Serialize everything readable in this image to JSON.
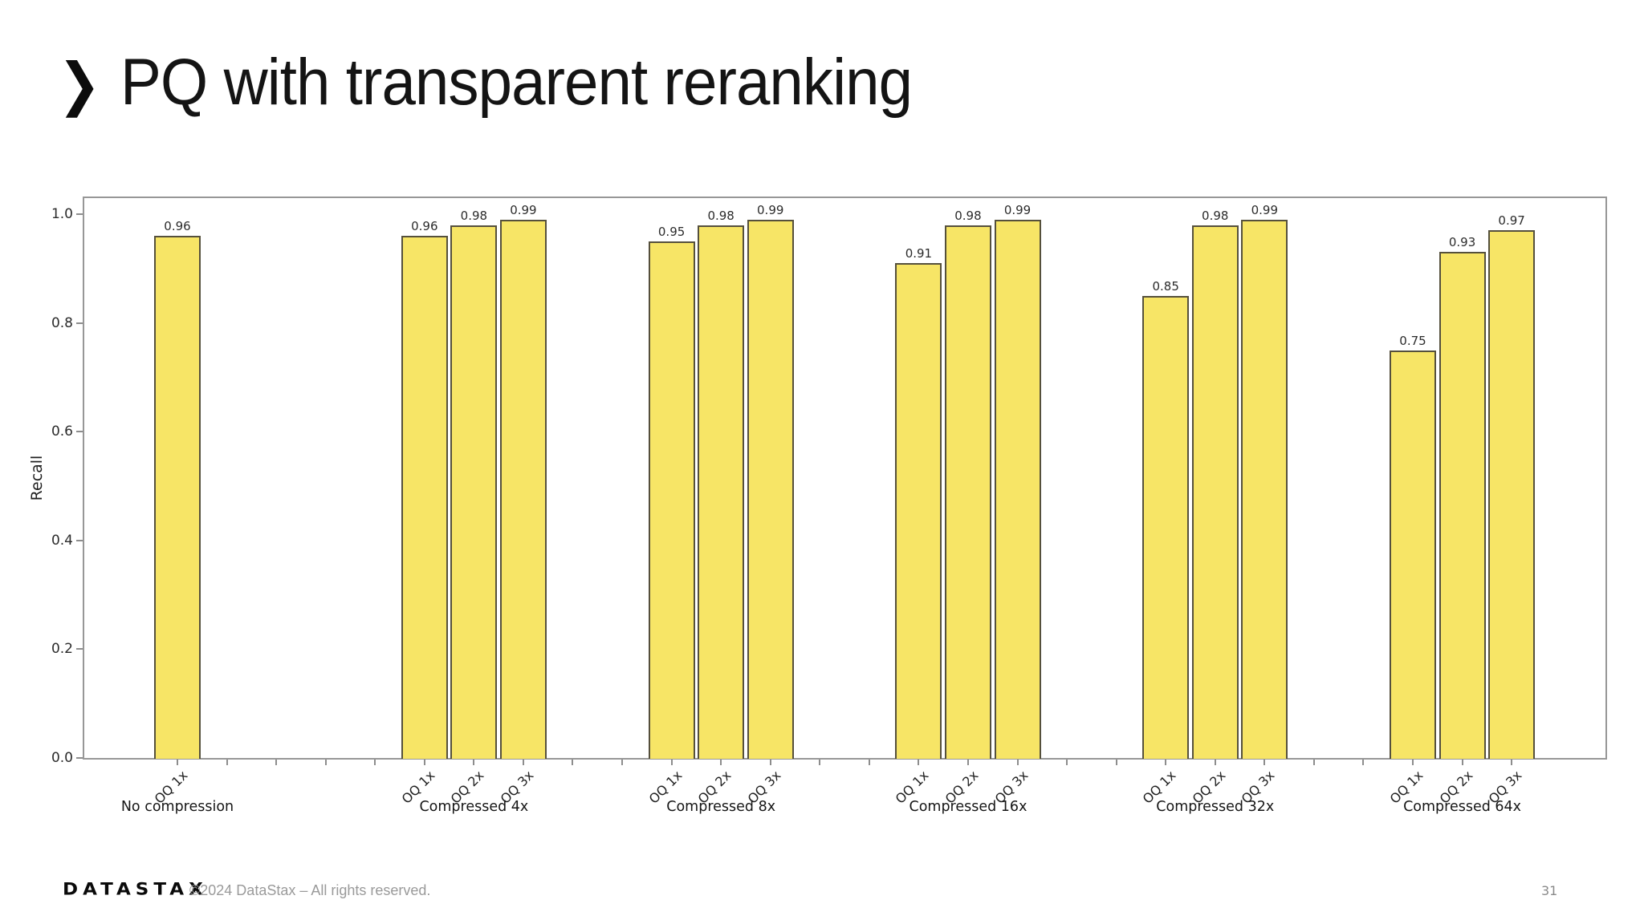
{
  "slide": {
    "title": "PQ with transparent reranking",
    "chevron_icon": "❯",
    "page_number": "31",
    "footer": {
      "logo_text": "DATASTAX",
      "copyright": "©2024 DataStax – All rights reserved."
    }
  },
  "chart_data": {
    "type": "bar",
    "title": "",
    "xlabel": "",
    "ylabel": "Recall",
    "ylim": [
      0.0,
      1.03
    ],
    "yticks": [
      0.0,
      0.2,
      0.4,
      0.6,
      0.8,
      1.0
    ],
    "grid": false,
    "legend": "none",
    "bar_color": "#F7E566",
    "bar_edge_color": "#55503C",
    "frame_color": "#979797",
    "slots_per_group": 3,
    "gap_slots": 2,
    "groups": [
      {
        "label": "No compression",
        "bars": [
          {
            "label": "OQ 1x",
            "value": 0.96
          }
        ]
      },
      {
        "label": "Compressed 4x",
        "bars": [
          {
            "label": "OQ 1x",
            "value": 0.96
          },
          {
            "label": "OQ 2x",
            "value": 0.98
          },
          {
            "label": "OQ 3x",
            "value": 0.99
          }
        ]
      },
      {
        "label": "Compressed 8x",
        "bars": [
          {
            "label": "OQ 1x",
            "value": 0.95
          },
          {
            "label": "OQ 2x",
            "value": 0.98
          },
          {
            "label": "OQ 3x",
            "value": 0.99
          }
        ]
      },
      {
        "label": "Compressed 16x",
        "bars": [
          {
            "label": "OQ 1x",
            "value": 0.91
          },
          {
            "label": "OQ 2x",
            "value": 0.98
          },
          {
            "label": "OQ 3x",
            "value": 0.99
          }
        ]
      },
      {
        "label": "Compressed 32x",
        "bars": [
          {
            "label": "OQ 1x",
            "value": 0.85
          },
          {
            "label": "OQ 2x",
            "value": 0.98
          },
          {
            "label": "OQ 3x",
            "value": 0.99
          }
        ]
      },
      {
        "label": "Compressed 64x",
        "bars": [
          {
            "label": "OQ 1x",
            "value": 0.75
          },
          {
            "label": "OQ 2x",
            "value": 0.93
          },
          {
            "label": "OQ 3x",
            "value": 0.97
          }
        ]
      }
    ]
  }
}
